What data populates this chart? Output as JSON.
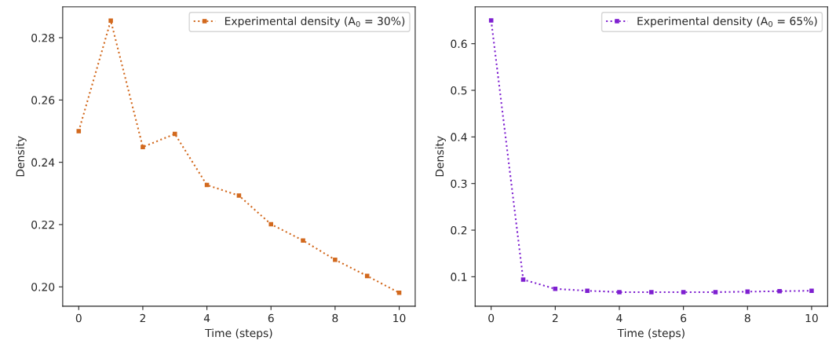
{
  "chart_data": [
    {
      "type": "line",
      "xlabel": "Time (steps)",
      "ylabel": "Density",
      "x": [
        0,
        1,
        2,
        3,
        4,
        5,
        6,
        7,
        8,
        9,
        10
      ],
      "series": [
        {
          "name": "Experimental density (A$_{0}$ = 30%)",
          "color": "#d2691e",
          "values": [
            0.25,
            0.2855,
            0.2449,
            0.2491,
            0.2327,
            0.2293,
            0.2201,
            0.2149,
            0.2087,
            0.2035,
            0.1981
          ]
        }
      ],
      "xlim": [
        -0.5,
        10.5
      ],
      "xticks": [
        0,
        2,
        4,
        6,
        8,
        10
      ],
      "ylim": [
        0.1938,
        0.2899
      ],
      "yticks": [
        {
          "value": 0.2,
          "label": "0.20"
        },
        0.22,
        0.24,
        0.26,
        0.28
      ],
      "marker": "square",
      "line_style": "dotted",
      "legend": "top right",
      "grid": false
    },
    {
      "type": "line",
      "xlabel": "Time (steps)",
      "ylabel": "Density",
      "x": [
        0,
        1,
        2,
        3,
        4,
        5,
        6,
        7,
        8,
        9,
        10
      ],
      "series": [
        {
          "name": "Experimental density (A$_{0}$ = 65%)",
          "color": "#7e1fd0",
          "values": [
            0.65,
            0.094,
            0.074,
            0.07,
            0.067,
            0.067,
            0.067,
            0.067,
            0.068,
            0.069,
            0.07
          ]
        }
      ],
      "xlim": [
        -0.5,
        10.5
      ],
      "xticks": [
        0,
        2,
        4,
        6,
        8,
        10
      ],
      "ylim": [
        0.0369,
        0.679
      ],
      "yticks": [
        0.1,
        0.2,
        0.3,
        0.4,
        0.5,
        0.6
      ],
      "marker": "square",
      "line_style": "dotted",
      "legend": "top right",
      "grid": false
    }
  ]
}
